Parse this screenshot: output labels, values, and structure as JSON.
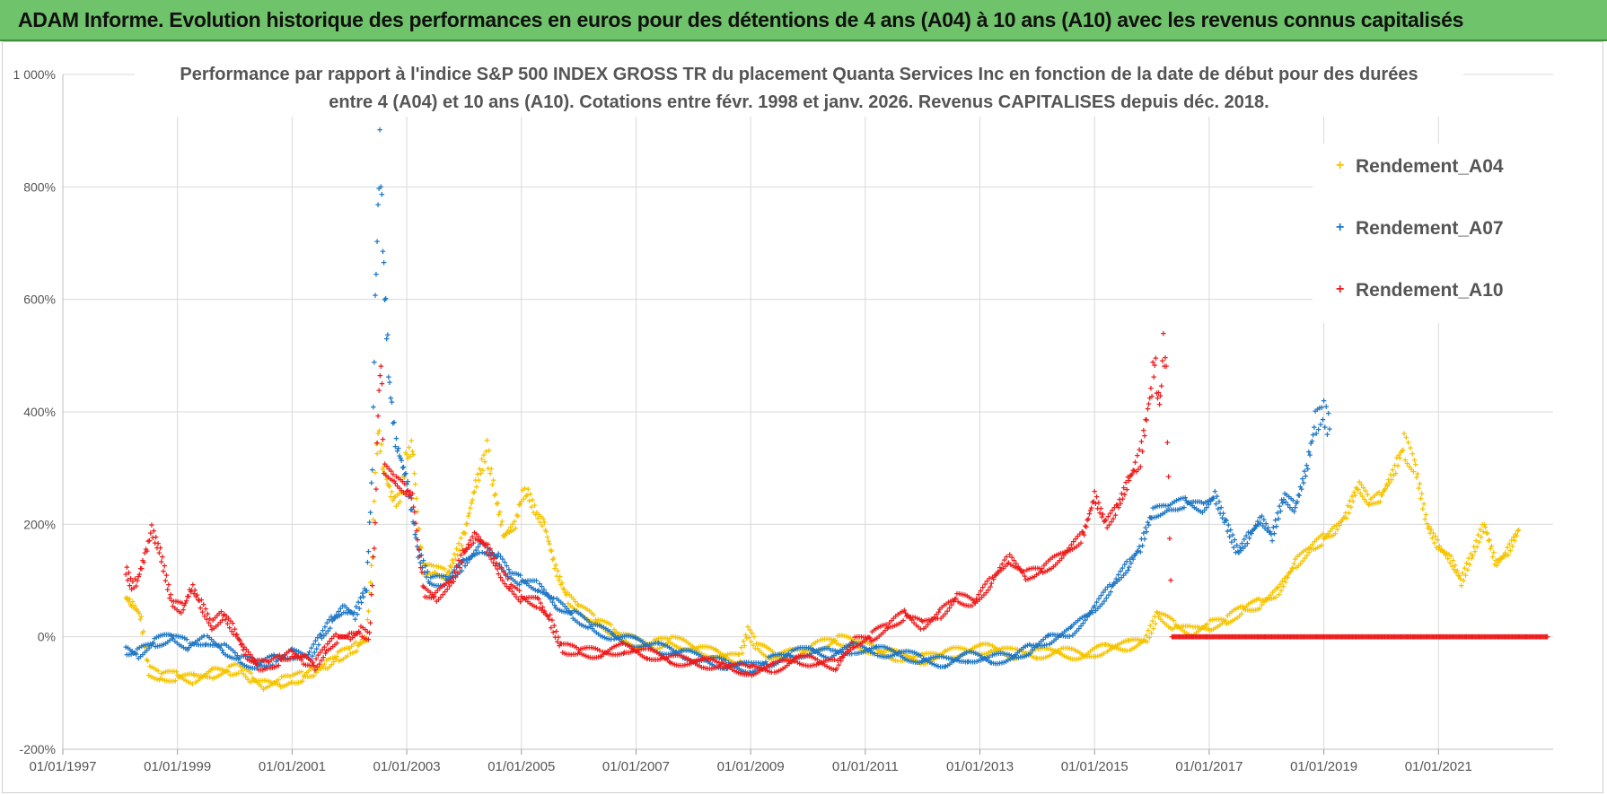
{
  "banner": {
    "title": "ADAM Informe. Evolution historique des performances en euros pour des détentions de 4 ans (A04) à 10 ans (A10) avec les revenus connus capitalisés"
  },
  "chart_data": {
    "type": "scatter",
    "title_line1": "Performance par rapport à l'indice S&P 500 INDEX GROSS TR  du placement Quanta Services Inc en fonction de la date de début pour des durées",
    "title_line2": "entre 4 (A04) et 10 ans (A10). Cotations entre févr. 1998 et janv. 2026. Revenus CAPITALISES depuis déc. 2018.",
    "xlabel": "",
    "ylabel": "",
    "xlim": [
      1997.0,
      2023.0
    ],
    "ylim": [
      -200,
      1000
    ],
    "y_ticks": [
      {
        "value": -200,
        "label": "-200%"
      },
      {
        "value": 0,
        "label": "0%"
      },
      {
        "value": 200,
        "label": "200%"
      },
      {
        "value": 400,
        "label": "400%"
      },
      {
        "value": 600,
        "label": "600%"
      },
      {
        "value": 800,
        "label": "800%"
      },
      {
        "value": 1000,
        "label": "1 000%"
      }
    ],
    "x_ticks": [
      {
        "value": 1997,
        "label": "01/01/1997"
      },
      {
        "value": 1999,
        "label": "01/01/1999"
      },
      {
        "value": 2001,
        "label": "01/01/2001"
      },
      {
        "value": 2003,
        "label": "01/01/2003"
      },
      {
        "value": 2005,
        "label": "01/01/2005"
      },
      {
        "value": 2007,
        "label": "01/01/2007"
      },
      {
        "value": 2009,
        "label": "01/01/2009"
      },
      {
        "value": 2011,
        "label": "01/01/2011"
      },
      {
        "value": 2013,
        "label": "01/01/2013"
      },
      {
        "value": 2015,
        "label": "01/01/2015"
      },
      {
        "value": 2017,
        "label": "01/01/2017"
      },
      {
        "value": 2019,
        "label": "01/01/2019"
      },
      {
        "value": 2021,
        "label": "01/01/2021"
      }
    ],
    "grid": true,
    "legend_position": "top-right",
    "marker": "+",
    "series": [
      {
        "name": "Rendement_A04",
        "color": "#f5c400",
        "points": [
          [
            1998.1,
            70
          ],
          [
            1998.2,
            60
          ],
          [
            1998.35,
            40
          ],
          [
            1998.5,
            -60
          ],
          [
            1998.7,
            -70
          ],
          [
            1999.0,
            -70
          ],
          [
            1999.3,
            -75
          ],
          [
            1999.6,
            -65
          ],
          [
            1999.9,
            -60
          ],
          [
            2000.1,
            -55
          ],
          [
            2000.3,
            -75
          ],
          [
            2000.5,
            -85
          ],
          [
            2000.8,
            -80
          ],
          [
            2001.0,
            -75
          ],
          [
            2001.2,
            -70
          ],
          [
            2001.4,
            -60
          ],
          [
            2001.6,
            -50
          ],
          [
            2001.8,
            -35
          ],
          [
            2002.0,
            -25
          ],
          [
            2002.15,
            -15
          ],
          [
            2002.3,
            0
          ],
          [
            2002.4,
            150
          ],
          [
            2002.45,
            300
          ],
          [
            2002.5,
            370
          ],
          [
            2002.6,
            300
          ],
          [
            2002.7,
            260
          ],
          [
            2002.8,
            240
          ],
          [
            2002.9,
            250
          ],
          [
            2003.0,
            320
          ],
          [
            2003.1,
            340
          ],
          [
            2003.2,
            200
          ],
          [
            2003.3,
            120
          ],
          [
            2003.5,
            120
          ],
          [
            2003.7,
            110
          ],
          [
            2004.0,
            180
          ],
          [
            2004.2,
            270
          ],
          [
            2004.4,
            330
          ],
          [
            2004.55,
            250
          ],
          [
            2004.7,
            180
          ],
          [
            2004.9,
            200
          ],
          [
            2005.0,
            250
          ],
          [
            2005.1,
            260
          ],
          [
            2005.25,
            220
          ],
          [
            2005.4,
            200
          ],
          [
            2005.6,
            120
          ],
          [
            2005.8,
            70
          ],
          [
            2006.0,
            50
          ],
          [
            2006.3,
            30
          ],
          [
            2006.6,
            10
          ],
          [
            2007.0,
            -10
          ],
          [
            2007.3,
            -15
          ],
          [
            2007.6,
            -5
          ],
          [
            2008.0,
            -20
          ],
          [
            2008.4,
            -30
          ],
          [
            2008.8,
            -40
          ],
          [
            2008.95,
            10
          ],
          [
            2009.1,
            -15
          ],
          [
            2009.4,
            -35
          ],
          [
            2009.8,
            -30
          ],
          [
            2010.2,
            -15
          ],
          [
            2010.5,
            -5
          ],
          [
            2010.8,
            -10
          ],
          [
            2011.2,
            -25
          ],
          [
            2011.6,
            -35
          ],
          [
            2012.0,
            -40
          ],
          [
            2012.4,
            -30
          ],
          [
            2012.8,
            -25
          ],
          [
            2013.2,
            -20
          ],
          [
            2013.6,
            -30
          ],
          [
            2014.0,
            -30
          ],
          [
            2014.4,
            -25
          ],
          [
            2014.8,
            -35
          ],
          [
            2015.2,
            -20
          ],
          [
            2015.6,
            -15
          ],
          [
            2015.9,
            -5
          ],
          [
            2016.1,
            40
          ],
          [
            2016.4,
            20
          ],
          [
            2016.7,
            10
          ],
          [
            2017.0,
            20
          ],
          [
            2017.3,
            30
          ],
          [
            2017.6,
            50
          ],
          [
            2017.9,
            60
          ],
          [
            2018.2,
            80
          ],
          [
            2018.5,
            130
          ],
          [
            2018.8,
            160
          ],
          [
            2019.0,
            175
          ],
          [
            2019.2,
            190
          ],
          [
            2019.4,
            220
          ],
          [
            2019.6,
            270
          ],
          [
            2019.8,
            240
          ],
          [
            2020.0,
            250
          ],
          [
            2020.2,
            290
          ],
          [
            2020.4,
            340
          ],
          [
            2020.6,
            300
          ],
          [
            2020.8,
            200
          ],
          [
            2021.0,
            160
          ],
          [
            2021.2,
            140
          ],
          [
            2021.4,
            100
          ],
          [
            2021.6,
            150
          ],
          [
            2021.8,
            200
          ],
          [
            2022.0,
            130
          ],
          [
            2022.2,
            150
          ],
          [
            2022.4,
            190
          ]
        ]
      },
      {
        "name": "Rendement_A07",
        "color": "#1f77c4",
        "points": [
          [
            1998.1,
            -25
          ],
          [
            1998.3,
            -30
          ],
          [
            1998.6,
            -10
          ],
          [
            1998.9,
            0
          ],
          [
            1999.2,
            -15
          ],
          [
            1999.5,
            -5
          ],
          [
            1999.8,
            -20
          ],
          [
            2000.1,
            -40
          ],
          [
            2000.4,
            -50
          ],
          [
            2000.7,
            -40
          ],
          [
            2001.0,
            -30
          ],
          [
            2001.3,
            -35
          ],
          [
            2001.5,
            0
          ],
          [
            2001.7,
            30
          ],
          [
            2001.9,
            50
          ],
          [
            2002.1,
            40
          ],
          [
            2002.3,
            90
          ],
          [
            2002.4,
            300
          ],
          [
            2002.45,
            600
          ],
          [
            2002.5,
            750
          ],
          [
            2002.53,
            880
          ],
          [
            2002.6,
            650
          ],
          [
            2002.7,
            450
          ],
          [
            2002.8,
            350
          ],
          [
            2003.0,
            280
          ],
          [
            2003.2,
            150
          ],
          [
            2003.4,
            100
          ],
          [
            2003.7,
            100
          ],
          [
            2004.0,
            130
          ],
          [
            2004.3,
            160
          ],
          [
            2004.6,
            140
          ],
          [
            2004.8,
            110
          ],
          [
            2005.0,
            100
          ],
          [
            2005.3,
            90
          ],
          [
            2005.6,
            60
          ],
          [
            2005.9,
            40
          ],
          [
            2006.2,
            20
          ],
          [
            2006.6,
            0
          ],
          [
            2007.0,
            -10
          ],
          [
            2007.4,
            -20
          ],
          [
            2007.8,
            -30
          ],
          [
            2008.2,
            -40
          ],
          [
            2008.6,
            -50
          ],
          [
            2009.0,
            -55
          ],
          [
            2009.3,
            -45
          ],
          [
            2009.7,
            -30
          ],
          [
            2010.1,
            -25
          ],
          [
            2010.4,
            -30
          ],
          [
            2010.8,
            -20
          ],
          [
            2011.2,
            -25
          ],
          [
            2011.6,
            -30
          ],
          [
            2012.0,
            -40
          ],
          [
            2012.4,
            -45
          ],
          [
            2012.8,
            -35
          ],
          [
            2013.2,
            -40
          ],
          [
            2013.6,
            -35
          ],
          [
            2013.9,
            -20
          ],
          [
            2014.2,
            -5
          ],
          [
            2014.6,
            10
          ],
          [
            2015.0,
            50
          ],
          [
            2015.3,
            90
          ],
          [
            2015.6,
            130
          ],
          [
            2015.8,
            160
          ],
          [
            2016.0,
            220
          ],
          [
            2016.3,
            230
          ],
          [
            2016.6,
            240
          ],
          [
            2016.9,
            230
          ],
          [
            2017.1,
            250
          ],
          [
            2017.3,
            200
          ],
          [
            2017.5,
            150
          ],
          [
            2017.7,
            180
          ],
          [
            2017.9,
            210
          ],
          [
            2018.1,
            180
          ],
          [
            2018.3,
            250
          ],
          [
            2018.5,
            230
          ],
          [
            2018.7,
            300
          ],
          [
            2018.85,
            380
          ],
          [
            2019.0,
            400
          ],
          [
            2019.1,
            370
          ]
        ]
      },
      {
        "name": "Rendement_A10",
        "color": "#ee1c1c",
        "points": [
          [
            1998.1,
            120
          ],
          [
            1998.2,
            90
          ],
          [
            1998.3,
            100
          ],
          [
            1998.45,
            150
          ],
          [
            1998.55,
            190
          ],
          [
            1998.7,
            150
          ],
          [
            1998.9,
            60
          ],
          [
            1999.1,
            50
          ],
          [
            1999.25,
            90
          ],
          [
            1999.4,
            60
          ],
          [
            1999.6,
            20
          ],
          [
            1999.8,
            40
          ],
          [
            2000.0,
            10
          ],
          [
            2000.2,
            -30
          ],
          [
            2000.4,
            -50
          ],
          [
            2000.6,
            -50
          ],
          [
            2000.8,
            -40
          ],
          [
            2001.0,
            -30
          ],
          [
            2001.2,
            -40
          ],
          [
            2001.4,
            -50
          ],
          [
            2001.6,
            -20
          ],
          [
            2001.8,
            0
          ],
          [
            2002.0,
            0
          ],
          [
            2002.2,
            10
          ],
          [
            2002.35,
            0
          ],
          [
            2002.45,
            200
          ],
          [
            2002.5,
            400
          ],
          [
            2002.55,
            500
          ],
          [
            2002.6,
            300
          ],
          [
            2002.8,
            280
          ],
          [
            2003.0,
            260
          ],
          [
            2003.1,
            250
          ],
          [
            2003.3,
            80
          ],
          [
            2003.5,
            70
          ],
          [
            2003.8,
            100
          ],
          [
            2004.0,
            150
          ],
          [
            2004.2,
            180
          ],
          [
            2004.4,
            160
          ],
          [
            2004.6,
            120
          ],
          [
            2004.8,
            90
          ],
          [
            2005.0,
            70
          ],
          [
            2005.3,
            60
          ],
          [
            2005.5,
            30
          ],
          [
            2005.7,
            -20
          ],
          [
            2006.0,
            -25
          ],
          [
            2006.4,
            -30
          ],
          [
            2006.8,
            -20
          ],
          [
            2007.2,
            -30
          ],
          [
            2007.6,
            -40
          ],
          [
            2008.0,
            -45
          ],
          [
            2008.5,
            -50
          ],
          [
            2009.0,
            -60
          ],
          [
            2009.4,
            -55
          ],
          [
            2009.8,
            -40
          ],
          [
            2010.2,
            -45
          ],
          [
            2010.5,
            -50
          ],
          [
            2010.8,
            -10
          ],
          [
            2011.1,
            0
          ],
          [
            2011.4,
            20
          ],
          [
            2011.7,
            40
          ],
          [
            2012.0,
            20
          ],
          [
            2012.3,
            40
          ],
          [
            2012.6,
            70
          ],
          [
            2012.9,
            60
          ],
          [
            2013.2,
            100
          ],
          [
            2013.5,
            140
          ],
          [
            2013.8,
            110
          ],
          [
            2014.1,
            120
          ],
          [
            2014.5,
            150
          ],
          [
            2014.8,
            180
          ],
          [
            2015.0,
            250
          ],
          [
            2015.2,
            200
          ],
          [
            2015.4,
            230
          ],
          [
            2015.6,
            280
          ],
          [
            2015.8,
            320
          ],
          [
            2016.0,
            450
          ],
          [
            2016.05,
            500
          ],
          [
            2016.1,
            430
          ],
          [
            2016.15,
            420
          ],
          [
            2016.2,
            520
          ],
          [
            2016.25,
            460
          ],
          [
            2016.35,
            0
          ],
          [
            2017.0,
            0
          ],
          [
            2018.0,
            0
          ],
          [
            2019.0,
            0
          ],
          [
            2020.0,
            0
          ],
          [
            2021.0,
            0
          ],
          [
            2022.0,
            0
          ],
          [
            2022.9,
            0
          ]
        ]
      }
    ]
  }
}
